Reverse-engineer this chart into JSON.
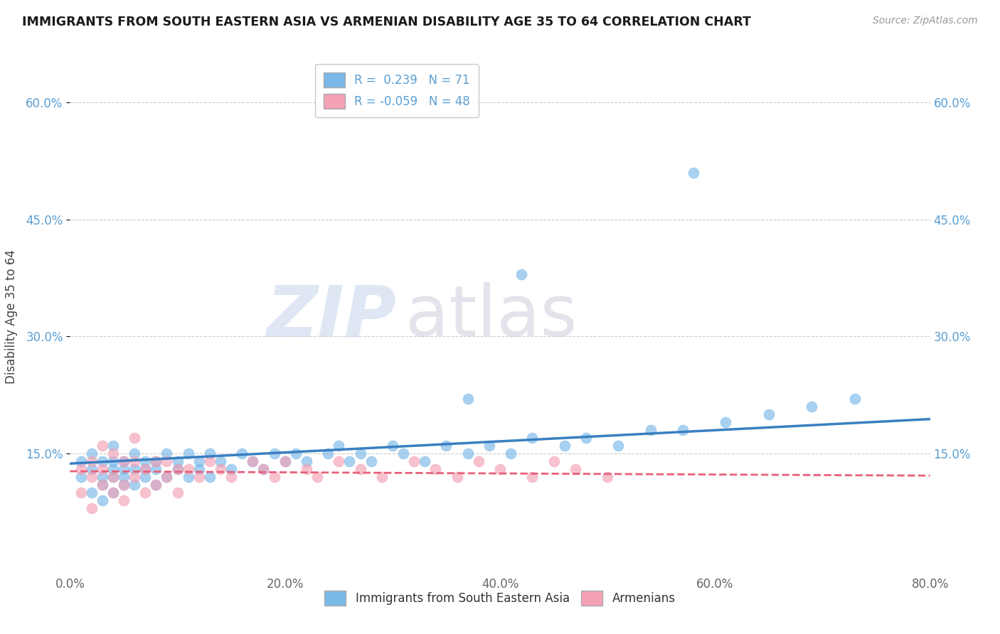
{
  "title": "IMMIGRANTS FROM SOUTH EASTERN ASIA VS ARMENIAN DISABILITY AGE 35 TO 64 CORRELATION CHART",
  "source": "Source: ZipAtlas.com",
  "ylabel": "Disability Age 35 to 64",
  "xmin": 0.0,
  "xmax": 0.8,
  "ymin": 0.0,
  "ymax": 0.65,
  "yticks": [
    0.15,
    0.3,
    0.45,
    0.6
  ],
  "ytick_labels": [
    "15.0%",
    "30.0%",
    "45.0%",
    "60.0%"
  ],
  "xticks": [
    0.0,
    0.2,
    0.4,
    0.6,
    0.8
  ],
  "xtick_labels": [
    "0.0%",
    "20.0%",
    "40.0%",
    "60.0%",
    "80.0%"
  ],
  "blue_R": 0.239,
  "blue_N": 71,
  "pink_R": -0.059,
  "pink_N": 48,
  "blue_color": "#7ab8e8",
  "pink_color": "#f4a0b5",
  "blue_line_color": "#3a7fc1",
  "pink_line_color": "#e8607a",
  "watermark_zip": "ZIP",
  "watermark_atlas": "atlas",
  "legend_label_blue": "Immigrants from South Eastern Asia",
  "legend_label_pink": "Armenians",
  "blue_scatter_x": [
    0.01,
    0.01,
    0.02,
    0.02,
    0.02,
    0.03,
    0.03,
    0.03,
    0.03,
    0.04,
    0.04,
    0.04,
    0.04,
    0.04,
    0.05,
    0.05,
    0.05,
    0.05,
    0.06,
    0.06,
    0.06,
    0.07,
    0.07,
    0.07,
    0.08,
    0.08,
    0.08,
    0.09,
    0.09,
    0.1,
    0.1,
    0.11,
    0.11,
    0.12,
    0.12,
    0.13,
    0.13,
    0.14,
    0.15,
    0.16,
    0.17,
    0.18,
    0.19,
    0.2,
    0.21,
    0.22,
    0.24,
    0.25,
    0.26,
    0.27,
    0.28,
    0.3,
    0.31,
    0.33,
    0.35,
    0.37,
    0.39,
    0.41,
    0.43,
    0.46,
    0.48,
    0.51,
    0.54,
    0.57,
    0.61,
    0.65,
    0.69,
    0.37,
    0.42,
    0.58,
    0.73
  ],
  "blue_scatter_y": [
    0.12,
    0.14,
    0.13,
    0.1,
    0.15,
    0.12,
    0.14,
    0.09,
    0.11,
    0.1,
    0.13,
    0.12,
    0.14,
    0.16,
    0.11,
    0.13,
    0.14,
    0.12,
    0.13,
    0.11,
    0.15,
    0.12,
    0.14,
    0.13,
    0.11,
    0.14,
    0.13,
    0.12,
    0.15,
    0.13,
    0.14,
    0.12,
    0.15,
    0.13,
    0.14,
    0.12,
    0.15,
    0.14,
    0.13,
    0.15,
    0.14,
    0.13,
    0.15,
    0.14,
    0.15,
    0.14,
    0.15,
    0.16,
    0.14,
    0.15,
    0.14,
    0.16,
    0.15,
    0.14,
    0.16,
    0.15,
    0.16,
    0.15,
    0.17,
    0.16,
    0.17,
    0.16,
    0.18,
    0.18,
    0.19,
    0.2,
    0.21,
    0.22,
    0.38,
    0.51,
    0.22
  ],
  "pink_scatter_x": [
    0.01,
    0.01,
    0.02,
    0.02,
    0.02,
    0.03,
    0.03,
    0.03,
    0.04,
    0.04,
    0.04,
    0.05,
    0.05,
    0.05,
    0.06,
    0.06,
    0.06,
    0.07,
    0.07,
    0.08,
    0.08,
    0.09,
    0.09,
    0.1,
    0.1,
    0.11,
    0.12,
    0.13,
    0.14,
    0.15,
    0.17,
    0.18,
    0.19,
    0.2,
    0.22,
    0.23,
    0.25,
    0.27,
    0.29,
    0.32,
    0.34,
    0.36,
    0.38,
    0.4,
    0.43,
    0.45,
    0.47,
    0.5
  ],
  "pink_scatter_y": [
    0.1,
    0.13,
    0.12,
    0.14,
    0.08,
    0.11,
    0.13,
    0.16,
    0.1,
    0.12,
    0.15,
    0.11,
    0.14,
    0.09,
    0.12,
    0.14,
    0.17,
    0.1,
    0.13,
    0.11,
    0.14,
    0.12,
    0.14,
    0.13,
    0.1,
    0.13,
    0.12,
    0.14,
    0.13,
    0.12,
    0.14,
    0.13,
    0.12,
    0.14,
    0.13,
    0.12,
    0.14,
    0.13,
    0.12,
    0.14,
    0.13,
    0.12,
    0.14,
    0.13,
    0.12,
    0.14,
    0.13,
    0.12
  ],
  "bg_color": "#ffffff",
  "grid_color": "#cccccc",
  "tick_color": "#5a9fd4"
}
